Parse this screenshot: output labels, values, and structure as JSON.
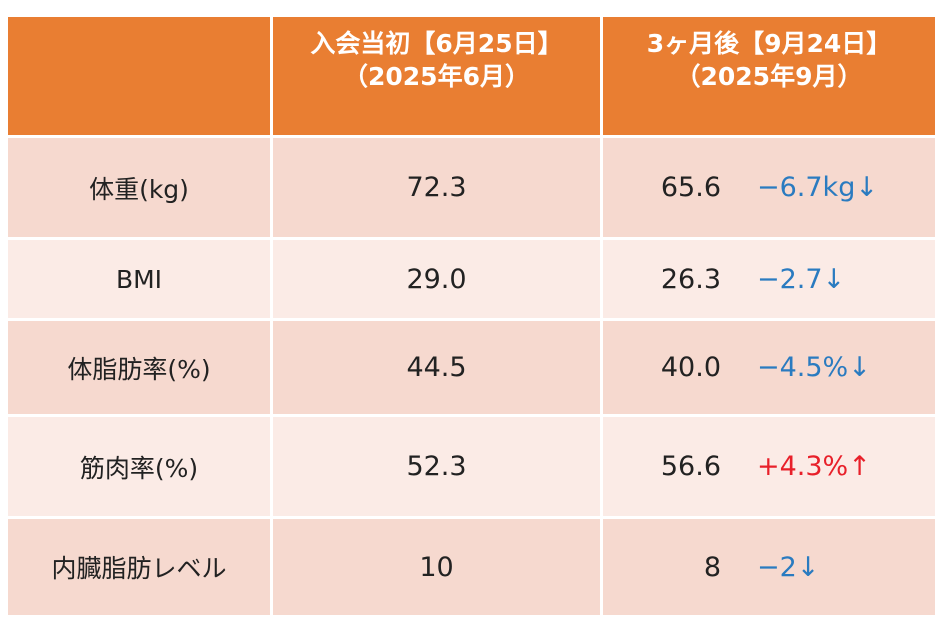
{
  "header": {
    "col1_line1": "入会当初【6月25日】",
    "col1_line2": "（2025年6月）",
    "col2_line1": "3ヶ月後【9月24日】",
    "col2_line2": "（2025年9月）"
  },
  "rows": [
    {
      "label": "体重(kg)",
      "before": "72.3",
      "after": "65.6",
      "diff": "−6.7kg↓"
    },
    {
      "label": "BMI",
      "before": "29.0",
      "after": "26.3",
      "diff": "−2.7↓"
    },
    {
      "label": "体脂肪率(%)",
      "before": "44.5",
      "after": "40.0",
      "diff": "−4.5%↓"
    },
    {
      "label": "筋肉率(%)",
      "before": "52.3",
      "after": "56.6",
      "diff": "+4.3%↑"
    },
    {
      "label": "内臓脂肪レベル",
      "before": "10",
      "after": "8",
      "diff": "−2↓"
    }
  ],
  "colors": {
    "header": "#e97e32",
    "down": "#2a7bc0",
    "up": "#e8202a"
  }
}
